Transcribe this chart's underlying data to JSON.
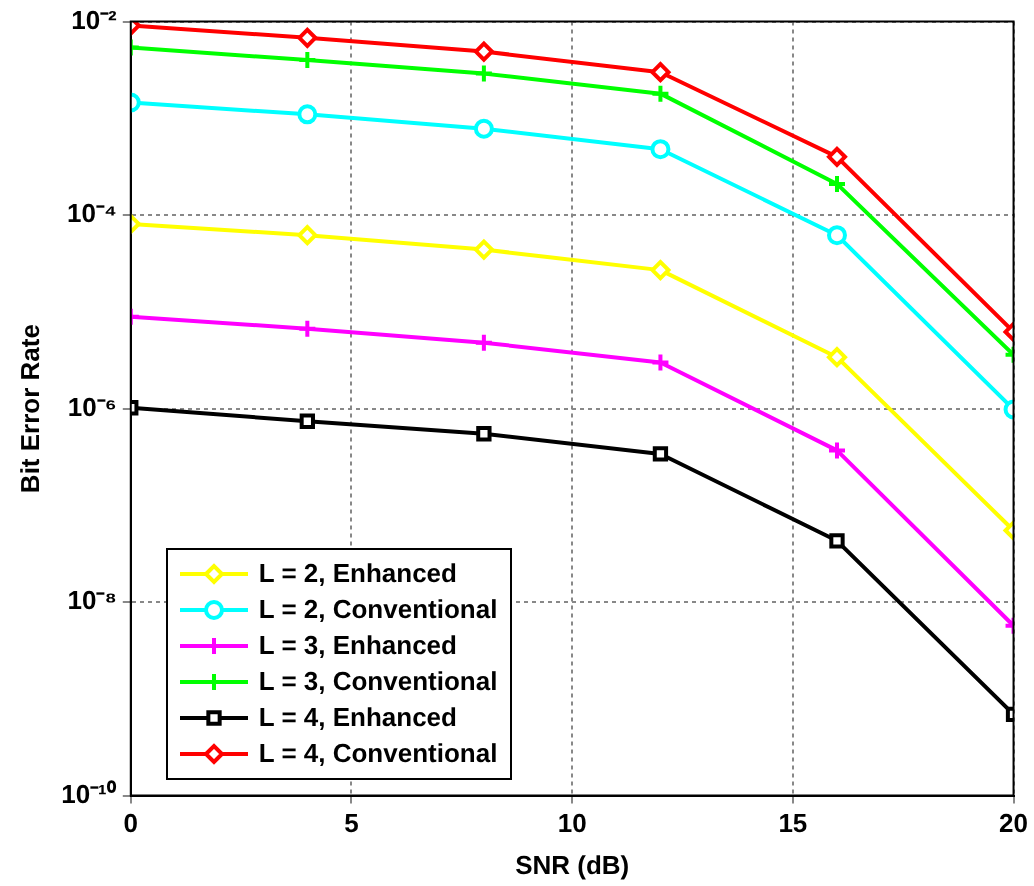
{
  "chart_data": {
    "type": "line",
    "xlabel": "SNR (dB)",
    "ylabel": "Bit Error Rate",
    "log": "y",
    "grid": true,
    "legend": "bottom left",
    "line_style": "solid",
    "x": [
      0,
      4,
      8,
      12,
      16,
      20
    ],
    "xlim": [
      0,
      20
    ],
    "xticks": [
      0,
      5,
      10,
      15,
      20
    ],
    "ylim": [
      1e-10,
      0.01
    ],
    "yticks": [
      {
        "value": 1e-10,
        "label": "10⁻¹⁰"
      },
      {
        "value": 1e-08,
        "label": "10⁻⁸"
      },
      {
        "value": 1e-06,
        "label": "10⁻⁶"
      },
      {
        "value": 0.0001,
        "label": "10⁻⁴"
      },
      {
        "value": 0.01,
        "label": "10⁻²"
      }
    ],
    "series": [
      {
        "name": "L = 2, Enhanced",
        "color": "#ffff00",
        "marker": "diamond",
        "values": [
          8.1e-05,
          6.2e-05,
          4.4e-05,
          2.7e-05,
          3.4e-06,
          5.5e-08
        ]
      },
      {
        "name": "L = 2, Conventional",
        "color": "#00ffff",
        "marker": "circle",
        "values": [
          0.00146,
          0.0011,
          0.00078,
          0.00048,
          6.2e-05,
          9.8e-07
        ]
      },
      {
        "name": "L = 3, Enhanced",
        "color": "#ff00ff",
        "marker": "cross",
        "values": [
          8.9e-06,
          6.7e-06,
          4.8e-06,
          3e-06,
          3.7e-07,
          5.7e-09
        ]
      },
      {
        "name": "L = 3, Conventional",
        "color": "#00ff00",
        "marker": "cross",
        "values": [
          0.0054,
          0.004,
          0.0029,
          0.0018,
          0.00021,
          3.6e-06
        ]
      },
      {
        "name": "L = 4, Enhanced",
        "color": "#000000",
        "marker": "square",
        "values": [
          1.02e-06,
          7.4e-07,
          5.5e-07,
          3.4e-07,
          4.3e-08,
          6.9e-10
        ]
      },
      {
        "name": "L = 4, Conventional",
        "color": "#ff0000",
        "marker": "diamond",
        "values": [
          0.0091,
          0.0068,
          0.0049,
          0.003,
          0.0004,
          6.2e-06
        ]
      }
    ]
  }
}
